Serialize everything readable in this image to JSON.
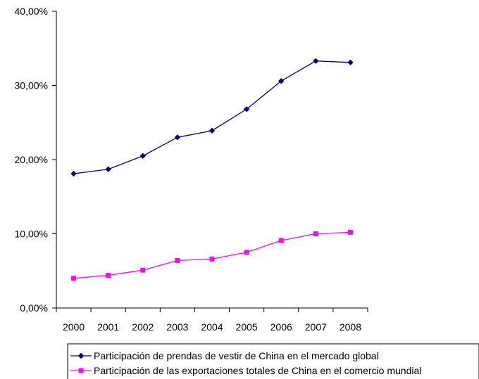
{
  "chart_data": {
    "type": "line",
    "categories": [
      "2000",
      "2001",
      "2002",
      "2003",
      "2004",
      "2005",
      "2006",
      "2007",
      "2008"
    ],
    "ylim": [
      0,
      40
    ],
    "ytick_labels": [
      "0,00%",
      "10,00%",
      "20,00%",
      "30,00%",
      "40,00%"
    ],
    "ytick_values": [
      0,
      10,
      20,
      30,
      40
    ],
    "grid": false,
    "legend_position": "bottom",
    "series": [
      {
        "name": "Participación de prendas de vestir de China en el mercado global",
        "values": [
          18.1,
          18.7,
          20.5,
          23.0,
          23.9,
          26.8,
          30.6,
          33.3,
          33.1
        ],
        "color": "#000080",
        "marker": "diamond"
      },
      {
        "name": "Participación de las exportaciones totales de China en el comercio mundial",
        "values": [
          4.0,
          4.4,
          5.1,
          6.4,
          6.6,
          7.5,
          9.1,
          10.0,
          10.2
        ],
        "color": "#ff00ff",
        "marker": "square"
      }
    ]
  }
}
